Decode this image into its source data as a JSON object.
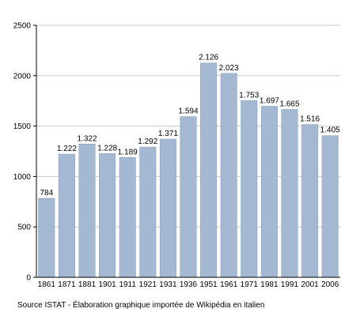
{
  "colors": {
    "bar": "#a4b9d1",
    "bar_edge": "#8fa6c2",
    "grid": "#c8c8c8",
    "axis": "#000000"
  },
  "source_note": "Source ISTAT - Élaboration graphique importée de Wikipédia en italien",
  "chart_data": {
    "type": "bar",
    "title": "",
    "xlabel": "",
    "ylabel": "",
    "ylim": [
      0,
      2500
    ],
    "yticks": [
      "0",
      "500",
      "1000",
      "1500",
      "2000",
      "2500"
    ],
    "ytick_values": [
      0,
      500,
      1000,
      1500,
      2000,
      2500
    ],
    "grid": true,
    "categories": [
      "1861",
      "1871",
      "1881",
      "1901",
      "1911",
      "1921",
      "1931",
      "1936",
      "1951",
      "1961",
      "1971",
      "1981",
      "1991",
      "2001",
      "2006"
    ],
    "values": [
      784,
      1222,
      1322,
      1228,
      1189,
      1292,
      1371,
      1594,
      2126,
      2023,
      1753,
      1697,
      1665,
      1516,
      1405
    ],
    "value_labels": [
      "784",
      "1.222",
      "1.322",
      "1.228",
      "1.189",
      "1.292",
      "1.371",
      "1.594",
      "2.126",
      "2.023",
      "1.753",
      "1.697",
      "1.665",
      "1.516",
      "1.405"
    ]
  }
}
